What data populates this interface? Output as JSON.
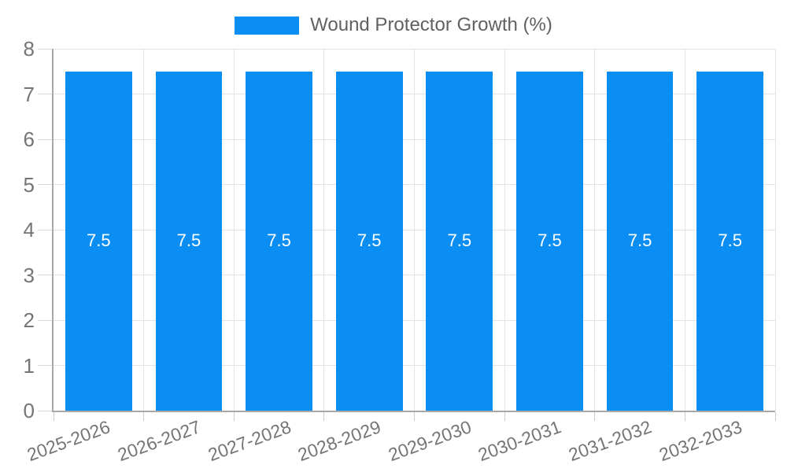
{
  "chart_data": {
    "type": "bar",
    "title": "",
    "legend": {
      "position": "top",
      "entries": [
        {
          "label": "Wound Protector Growth (%)",
          "color": "#0b8ef3"
        }
      ]
    },
    "categories": [
      "2025-2026",
      "2026-2027",
      "2027-2028",
      "2028-2029",
      "2029-2030",
      "2030-2031",
      "2031-2032",
      "2032-2033"
    ],
    "series": [
      {
        "name": "Wound Protector Growth (%)",
        "values": [
          7.5,
          7.5,
          7.5,
          7.5,
          7.5,
          7.5,
          7.5,
          7.5
        ]
      }
    ],
    "bar_value_labels": [
      "7.5",
      "7.5",
      "7.5",
      "7.5",
      "7.5",
      "7.5",
      "7.5",
      "7.5"
    ],
    "xlabel": "",
    "ylabel": "",
    "ylim": [
      0,
      8
    ],
    "yticks": [
      0,
      1,
      2,
      3,
      4,
      5,
      6,
      7,
      8
    ],
    "grid": true,
    "x_label_rotation_deg": -20,
    "colors": {
      "bar": "#0b8ef3",
      "grid": "#e3e3e3",
      "axis_line": "#a8a8a8",
      "tick": "#cccccc",
      "axis_text": "#757575",
      "legend_text": "#616161",
      "bar_label_text": "#ffffff",
      "background": "#ffffff"
    }
  }
}
